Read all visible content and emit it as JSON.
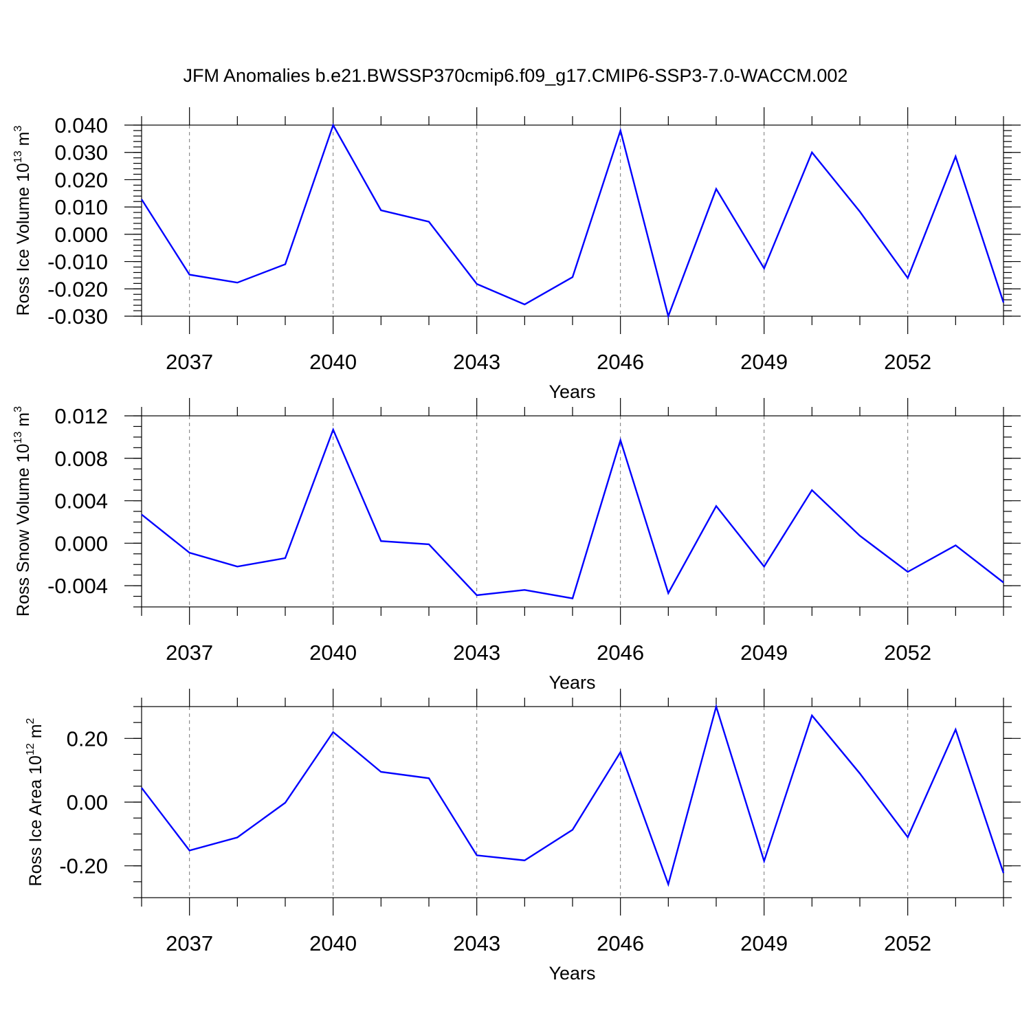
{
  "page": {
    "title": "JFM Anomalies b.e21.BWSSP370cmip6.f09_g17.CMIP6-SSP3-7.0-WACCM.002"
  },
  "colors": {
    "line": "#0000ff",
    "grid": "#777777"
  },
  "chart_data": [
    {
      "type": "line",
      "ylabel": {
        "prefix": "Ross Ice Volume 10",
        "exp": "13",
        "unit": " m",
        "unit_exp": "3"
      },
      "xlabel": "Years",
      "xlim": [
        2036,
        2054
      ],
      "ylim": [
        -0.03,
        0.04
      ],
      "x_ticks": [
        2037,
        2040,
        2043,
        2046,
        2049,
        2052
      ],
      "x_tick_labels": [
        "2037",
        "2040",
        "2043",
        "2046",
        "2049",
        "2052"
      ],
      "y_ticks": [
        -0.03,
        -0.02,
        -0.01,
        0.0,
        0.01,
        0.02,
        0.03,
        0.04
      ],
      "y_tick_labels": [
        "-0.030",
        "-0.020",
        "-0.010",
        "0.000",
        "0.010",
        "0.020",
        "0.030",
        "0.040"
      ],
      "y_minor_step": 0.002,
      "grid": "dashed vertical at major x ticks",
      "x": [
        2036,
        2037,
        2038,
        2039,
        2040,
        2041,
        2042,
        2043,
        2044,
        2045,
        2046,
        2047,
        2048,
        2049,
        2050,
        2051,
        2052,
        2053,
        2054
      ],
      "values": [
        0.0128,
        -0.0148,
        -0.0177,
        -0.011,
        0.04,
        0.0088,
        0.0046,
        -0.0182,
        -0.0257,
        -0.0157,
        0.038,
        -0.03,
        0.0166,
        -0.0125,
        0.03,
        0.0083,
        -0.016,
        0.0285,
        -0.025
      ]
    },
    {
      "type": "line",
      "ylabel": {
        "prefix": "Ross Snow Volume 10",
        "exp": "13",
        "unit": " m",
        "unit_exp": "3"
      },
      "xlabel": "Years",
      "xlim": [
        2036,
        2054
      ],
      "ylim": [
        -0.006,
        0.012
      ],
      "x_ticks": [
        2037,
        2040,
        2043,
        2046,
        2049,
        2052
      ],
      "x_tick_labels": [
        "2037",
        "2040",
        "2043",
        "2046",
        "2049",
        "2052"
      ],
      "y_ticks": [
        -0.004,
        0.0,
        0.004,
        0.008,
        0.012
      ],
      "y_tick_labels": [
        "-0.004",
        "0.000",
        "0.004",
        "0.008",
        "0.012"
      ],
      "y_minor_step": 0.001,
      "grid": "dashed vertical at major x ticks",
      "x": [
        2036,
        2037,
        2038,
        2039,
        2040,
        2041,
        2042,
        2043,
        2044,
        2045,
        2046,
        2047,
        2048,
        2049,
        2050,
        2051,
        2052,
        2053,
        2054
      ],
      "values": [
        0.0027,
        -0.0009,
        -0.0022,
        -0.0014,
        0.0107,
        0.0002,
        -0.0001,
        -0.0049,
        -0.0044,
        -0.0052,
        0.0097,
        -0.0047,
        0.0035,
        -0.0022,
        0.005,
        0.0007,
        -0.0027,
        -0.0002,
        -0.0037
      ]
    },
    {
      "type": "line",
      "ylabel": {
        "prefix": "Ross Ice Area 10",
        "exp": "12",
        "unit": " m",
        "unit_exp": "2"
      },
      "xlabel": "Years",
      "xlim": [
        2036,
        2054
      ],
      "ylim": [
        -0.3,
        0.3
      ],
      "x_ticks": [
        2037,
        2040,
        2043,
        2046,
        2049,
        2052
      ],
      "x_tick_labels": [
        "2037",
        "2040",
        "2043",
        "2046",
        "2049",
        "2052"
      ],
      "y_ticks": [
        -0.2,
        0.0,
        0.2
      ],
      "y_tick_labels": [
        "-0.20",
        "0.00",
        "0.20"
      ],
      "y_minor_step": 0.05,
      "grid": "dashed vertical at major x ticks",
      "x": [
        2036,
        2037,
        2038,
        2039,
        2040,
        2041,
        2042,
        2043,
        2044,
        2045,
        2046,
        2047,
        2048,
        2049,
        2050,
        2051,
        2052,
        2053,
        2054
      ],
      "values": [
        0.045,
        -0.152,
        -0.111,
        -0.002,
        0.22,
        0.095,
        0.075,
        -0.167,
        -0.183,
        -0.087,
        0.157,
        -0.258,
        0.3,
        -0.185,
        0.272,
        0.09,
        -0.11,
        0.228,
        -0.223
      ]
    }
  ]
}
